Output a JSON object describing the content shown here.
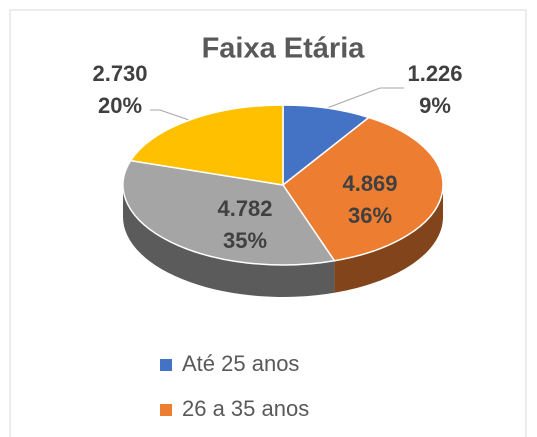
{
  "chart_data": {
    "type": "pie3d",
    "title": "Faixa Etária",
    "categories": [
      "Até 25 anos",
      "26 a 35 anos",
      null,
      null
    ],
    "values": [
      1226,
      4869,
      4782,
      2730
    ],
    "value_labels": [
      "1.226",
      "4.869",
      "4.782",
      "2.730"
    ],
    "percents": [
      9,
      36,
      35,
      20
    ],
    "percent_labels": [
      "9%",
      "36%",
      "35%",
      "20%"
    ],
    "colors": [
      "#4472c4",
      "#ed7d31",
      "#a5a5a5",
      "#ffc000"
    ],
    "legend": "bottom"
  }
}
